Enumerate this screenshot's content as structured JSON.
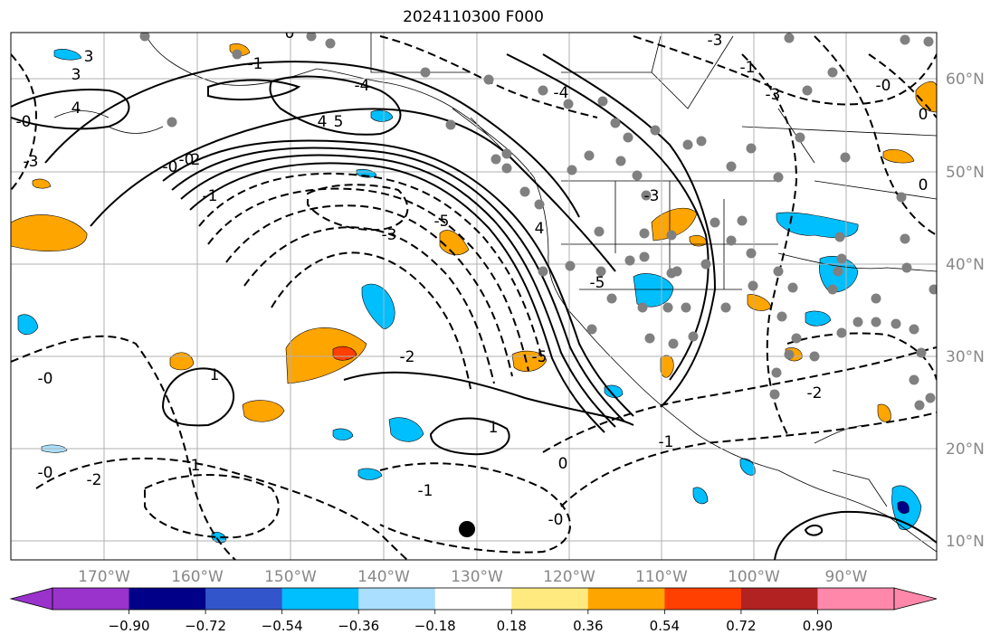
{
  "title": "2024110300 F000",
  "lon_labels": [
    "170°W",
    "160°W",
    "150°W",
    "140°W",
    "130°W",
    "120°W",
    "110°W",
    "100°W",
    "90°W"
  ],
  "lat_labels": [
    "60°N",
    "50°N",
    "40°N",
    "30°N",
    "20°N",
    "10°N"
  ],
  "colorbar": {
    "tick_labels": [
      "−0.90",
      "−0.72",
      "−0.54",
      "−0.36",
      "−0.18",
      "0.18",
      "0.36",
      "0.54",
      "0.72",
      "0.90"
    ],
    "colors": [
      "#9933cc",
      "#000088",
      "#3355cc",
      "#00bfff",
      "#aadfff",
      "#ffffff",
      "#ffea80",
      "#ffa500",
      "#ff4000",
      "#b22222",
      "#ff88aa"
    ]
  },
  "contour_labels": [
    "3",
    "5",
    "4",
    "-3",
    "-5",
    "-5",
    "-4",
    "-3",
    "-2",
    "-1",
    "0",
    "0",
    "-0",
    "-0",
    "1",
    "1",
    "1",
    "-2",
    "-2",
    "-1",
    "-1",
    "0",
    "-0",
    "-1",
    "-2",
    "-0",
    "-0",
    "-1",
    "-3",
    "-4",
    "-5",
    "-3",
    "-0",
    "0",
    "-0",
    "-3",
    "3",
    "4",
    "2",
    "4"
  ],
  "colors": {
    "land_line": "#000000",
    "grid": "#b0b0b0",
    "label": "#888888",
    "station": "#808080"
  }
}
